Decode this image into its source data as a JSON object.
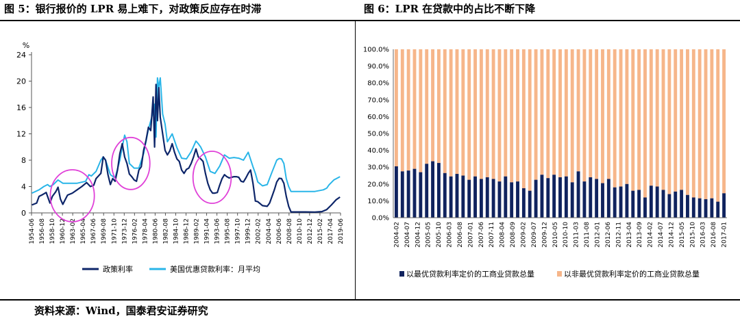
{
  "header": {
    "left_title": "图 5：银行报价的 LPR 易上难下，对政策反应存在时滞",
    "right_title": "图 6：LPR 在贷款中的占比不断下降"
  },
  "footer": {
    "source": "资料来源：Wind，国泰君安证券研究"
  },
  "colors": {
    "policy_rate": "#0d2569",
    "us_prime": "#29b5e8",
    "benchmark_share": "#10235e",
    "non_benchmark_share": "#f6b68a",
    "highlight_circle": "#e040d8"
  },
  "chart_data": [
    {
      "type": "line",
      "title": "",
      "ylabel": "%",
      "ylim": [
        0,
        24
      ],
      "yticks": [
        0,
        4,
        8,
        12,
        16,
        20,
        24
      ],
      "x_tick_labels": [
        "1954-06",
        "1956-08",
        "1958-10",
        "1960-12",
        "1963-02",
        "1965-04",
        "1967-06",
        "1969-08",
        "1971-10",
        "1973-12",
        "1976-02",
        "1978-04",
        "1980-06",
        "1982-08",
        "1984-10",
        "1986-12",
        "1989-02",
        "1991-04",
        "1993-06",
        "1995-08",
        "1997-10",
        "1999-12",
        "2002-02",
        "2004-04",
        "2006-06",
        "2008-08",
        "2010-10",
        "2012-12",
        "2015-02",
        "2017-04",
        "2019-06"
      ],
      "legend": "bottom",
      "annotations": [
        "circle ~1961-1965",
        "circle ~1973-1977",
        "circle ~1991-1994"
      ],
      "series": [
        {
          "name": "政策利率",
          "color": "#0d2569",
          "x": [
            1954.5,
            1955.5,
            1956,
            1956.8,
            1957.5,
            1958.3,
            1958.8,
            1959.5,
            1960,
            1960.5,
            1961,
            1961.5,
            1962,
            1963,
            1964,
            1965,
            1966,
            1966.8,
            1967.5,
            1968,
            1969,
            1969.5,
            1970,
            1970.5,
            1971,
            1971.5,
            1972,
            1972.5,
            1973,
            1973.5,
            1974,
            1974.5,
            1975,
            1975.5,
            1976,
            1976.5,
            1977,
            1977.5,
            1978,
            1978.5,
            1979,
            1979.5,
            1980,
            1980.3,
            1980.6,
            1980.9,
            1981.2,
            1981.5,
            1982,
            1982.5,
            1983,
            1983.5,
            1984,
            1984.5,
            1985,
            1985.5,
            1986,
            1986.5,
            1987,
            1987.5,
            1988,
            1988.5,
            1989,
            1989.5,
            1990,
            1990.5,
            1991,
            1991.5,
            1992,
            1992.5,
            1993,
            1993.5,
            1994,
            1994.5,
            1995,
            1995.5,
            1996,
            1996.5,
            1997,
            1997.5,
            1998,
            1998.5,
            1999,
            1999.5,
            2000,
            2000.5,
            2001,
            2001.5,
            2002,
            2003,
            2004,
            2004.5,
            2005,
            2005.5,
            2006,
            2006.5,
            2007,
            2007.5,
            2008,
            2008.5,
            2009,
            2010,
            2012,
            2014,
            2015.5,
            2016.5,
            2017.5,
            2018.5,
            2019.3
          ],
          "y": [
            1.2,
            1.5,
            2.5,
            2.8,
            3.1,
            1.5,
            2.5,
            3.2,
            3.9,
            2.1,
            1.3,
            2.0,
            2.7,
            3.0,
            3.5,
            4.0,
            4.6,
            4.0,
            4.2,
            5.2,
            6.0,
            8.5,
            8.0,
            5.8,
            4.3,
            5.2,
            4.8,
            6.5,
            9.0,
            10.5,
            8.5,
            7.5,
            5.9,
            5.5,
            5.0,
            4.8,
            6.5,
            7.0,
            9.5,
            11.0,
            13.0,
            12.5,
            17.6,
            10.0,
            19.5,
            14.0,
            19.0,
            14.5,
            12.0,
            9.5,
            8.8,
            9.4,
            10.5,
            9.2,
            8.2,
            7.8,
            6.5,
            6.0,
            6.6,
            6.8,
            7.5,
            8.5,
            9.7,
            8.5,
            8.2,
            7.8,
            6.0,
            4.5,
            3.5,
            3.0,
            3.0,
            3.1,
            4.2,
            5.2,
            5.8,
            5.5,
            5.3,
            5.4,
            5.5,
            5.5,
            5.4,
            4.8,
            4.7,
            5.3,
            6.0,
            6.5,
            4.5,
            1.8,
            1.7,
            1.1,
            1.0,
            1.5,
            2.5,
            3.5,
            4.7,
            5.25,
            5.2,
            4.5,
            2.5,
            1.0,
            0.15,
            0.15,
            0.15,
            0.12,
            0.2,
            0.5,
            1.2,
            2.0,
            2.4
          ]
        },
        {
          "name": "美国优惠贷款利率：月平均",
          "color": "#29b5e8",
          "x": [
            1954.5,
            1956,
            1957,
            1957.8,
            1958.3,
            1959,
            1960,
            1961,
            1962,
            1964,
            1965.8,
            1966.5,
            1967,
            1968,
            1969,
            1969.5,
            1970,
            1971,
            1972,
            1973,
            1973.5,
            1974,
            1974.5,
            1975,
            1976,
            1977,
            1978,
            1979,
            1980,
            1980.3,
            1980.6,
            1980.9,
            1981.2,
            1981.5,
            1982,
            1982.5,
            1983,
            1984,
            1985,
            1986,
            1987,
            1988,
            1989,
            1989.5,
            1990,
            1991,
            1992,
            1993,
            1994,
            1995,
            1996,
            1997,
            1998,
            1999,
            2000,
            2001,
            2001.5,
            2002,
            2003,
            2004,
            2005,
            2006,
            2006.5,
            2007,
            2007.5,
            2008,
            2008.5,
            2009,
            2010,
            2012,
            2014,
            2015.8,
            2016.5,
            2017,
            2018,
            2019.3
          ],
          "y": [
            3.0,
            3.5,
            4.0,
            4.3,
            4.0,
            4.3,
            5.0,
            4.5,
            4.5,
            4.5,
            4.8,
            5.8,
            5.6,
            6.3,
            8.0,
            8.5,
            8.0,
            5.8,
            5.3,
            8.0,
            10.0,
            11.8,
            10.8,
            7.5,
            6.8,
            6.8,
            9.0,
            12.7,
            15.3,
            16.5,
            11.5,
            20.5,
            19.0,
            20.5,
            15.0,
            13.5,
            10.8,
            12.0,
            9.9,
            8.3,
            8.2,
            9.3,
            10.9,
            10.5,
            10.0,
            8.5,
            6.3,
            6.0,
            7.1,
            8.8,
            8.3,
            8.4,
            8.3,
            8.0,
            9.2,
            7.0,
            6.0,
            4.7,
            4.1,
            4.3,
            6.2,
            8.0,
            8.25,
            8.2,
            7.5,
            5.2,
            4.0,
            3.25,
            3.25,
            3.25,
            3.25,
            3.5,
            3.75,
            4.25,
            5.0,
            5.5
          ]
        }
      ]
    },
    {
      "type": "bar",
      "stacked": true,
      "title": "",
      "ylim": [
        0,
        100
      ],
      "yticks": [
        "0.0%",
        "10.0%",
        "20.0%",
        "30.0%",
        "40.0%",
        "50.0%",
        "60.0%",
        "70.0%",
        "80.0%",
        "90.0%",
        "100.0%"
      ],
      "x_tick_labels": [
        "2004-02",
        "2004-07",
        "2004-12",
        "2005-05",
        "2005-10",
        "2006-03",
        "2006-08",
        "2007-01",
        "2007-06",
        "2007-11",
        "2008-04",
        "2008-09",
        "2009-02",
        "2009-07",
        "2009-12",
        "2010-05",
        "2010-10",
        "2011-03",
        "2011-08",
        "2012-01",
        "2012-06",
        "2012-11",
        "2013-04",
        "2013-09",
        "2014-02",
        "2014-07",
        "2014-12",
        "2015-05",
        "2015-10",
        "2016-03",
        "2016-08",
        "2017-01"
      ],
      "legend": "bottom",
      "series": [
        {
          "name": "以最优贷款利率定价的工商业贷款总量",
          "color": "#10235e",
          "values": [
            30.5,
            27.5,
            28,
            29,
            27,
            32,
            33.5,
            32.5,
            26.5,
            24.5,
            26,
            25,
            22.5,
            24.5,
            23,
            24,
            23,
            21.5,
            24.5,
            21,
            21.5,
            17.5,
            16,
            22.5,
            25.5,
            23.5,
            25.5,
            24,
            24.5,
            21,
            27.5,
            21.5,
            24,
            23,
            20.5,
            23,
            18,
            18.5,
            20,
            16,
            16.5,
            12,
            19,
            18.5,
            16.5,
            14,
            15.5,
            16.5,
            13.5,
            12,
            11.5,
            11,
            11.5,
            9.5,
            14.5
          ]
        },
        {
          "name": "以非最优贷款利率定价的工商业贷款总量",
          "color": "#f6b68a",
          "values": [
            69.5,
            72.5,
            72,
            71,
            73,
            68,
            66.5,
            67.5,
            73.5,
            75.5,
            74,
            75,
            77.5,
            75.5,
            77,
            76,
            77,
            78.5,
            75.5,
            79,
            78.5,
            82.5,
            84,
            77.5,
            74.5,
            76.5,
            74.5,
            76,
            75.5,
            79,
            72.5,
            78.5,
            76,
            77,
            79.5,
            77,
            82,
            81.5,
            80,
            84,
            83.5,
            88,
            81,
            81.5,
            83.5,
            86,
            84.5,
            83.5,
            86.5,
            88,
            88.5,
            89,
            88.5,
            90.5,
            85.5
          ]
        }
      ]
    }
  ]
}
